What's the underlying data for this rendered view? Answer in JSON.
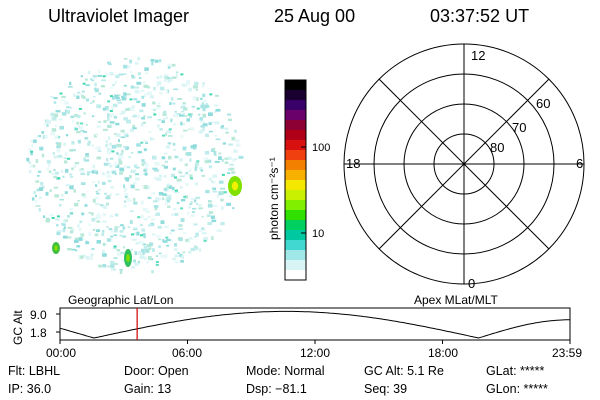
{
  "header": {
    "title": "Ultraviolet Imager",
    "date": "25 Aug 00",
    "time": "03:37:52 UT"
  },
  "colorbar": {
    "ticks": [
      "100",
      "10"
    ],
    "unit_label": "photon cm⁻²s⁻¹",
    "colors": [
      "#000000",
      "#1a0030",
      "#3a006a",
      "#6a006a",
      "#8c0033",
      "#b00018",
      "#d81010",
      "#f04010",
      "#f48000",
      "#f8b000",
      "#f4e800",
      "#c8f000",
      "#80f000",
      "#30e000",
      "#00d060",
      "#00c8a0",
      "#40d8d0",
      "#a0e8e8",
      "#d8f4f4",
      "#ffffff"
    ]
  },
  "polar": {
    "labels": {
      "top": "12",
      "left": "18",
      "right": "6",
      "bottom": "0"
    },
    "lat_labels": [
      "60",
      "70",
      "80"
    ]
  },
  "plot": {
    "left_label": "Geographic Lat/Lon",
    "right_label": "Apex MLat/MLT",
    "axis_title": "GC Alt",
    "y_ticks": [
      "9.0",
      "1.8"
    ],
    "x_ticks": [
      "00:00",
      "06:00",
      "12:00",
      "18:00",
      "23:59"
    ],
    "marker_time_hours": 3.63,
    "curve_color": "#000000",
    "marker_color": "#cc0000"
  },
  "status": {
    "row1": [
      "Flt: LBHL",
      "Door: Open",
      "Mode: Normal",
      "GC Alt: 5.1 Re",
      "GLat: *****"
    ],
    "row2": [
      "IP: 36.0",
      "Gain: 13",
      "Dsp:  −81.1",
      "Seq: 39",
      "GLon: *****"
    ]
  }
}
